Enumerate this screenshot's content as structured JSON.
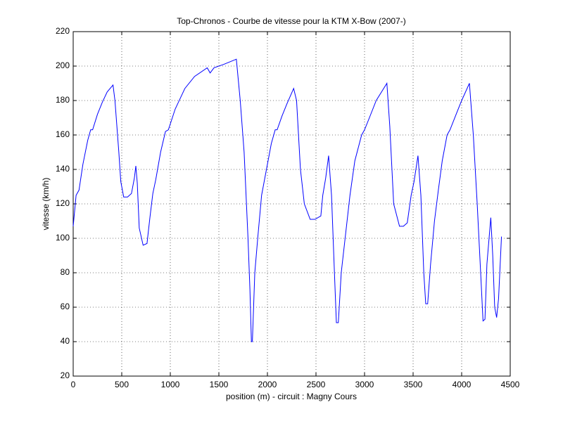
{
  "chart_data": {
    "type": "line",
    "title": "Top-Chronos - Courbe de vitesse pour la KTM X-Bow (2007-)",
    "xlabel": "position (m) - circuit : Magny Cours",
    "ylabel": "vitesse (km/h)",
    "color": "#0000ff",
    "grid": true,
    "xlim": [
      0,
      4500
    ],
    "xticks": [
      0,
      500,
      1000,
      1500,
      2000,
      2500,
      3000,
      3500,
      4000,
      4500
    ],
    "ylim": [
      20,
      220
    ],
    "yticks": [
      20,
      40,
      60,
      80,
      100,
      120,
      140,
      160,
      180,
      200,
      220
    ],
    "x": [
      0,
      30,
      60,
      100,
      150,
      180,
      200,
      250,
      300,
      350,
      410,
      430,
      470,
      490,
      520,
      560,
      600,
      630,
      645,
      660,
      680,
      720,
      760,
      790,
      820,
      850,
      900,
      950,
      980,
      1050,
      1150,
      1250,
      1380,
      1410,
      1450,
      1550,
      1680,
      1720,
      1760,
      1800,
      1820,
      1835,
      1845,
      1870,
      1900,
      1940,
      1990,
      2040,
      2080,
      2100,
      2150,
      2200,
      2270,
      2300,
      2340,
      2380,
      2440,
      2490,
      2550,
      2570,
      2600,
      2630,
      2660,
      2690,
      2710,
      2730,
      2760,
      2800,
      2850,
      2900,
      2970,
      3000,
      3050,
      3120,
      3230,
      3260,
      3300,
      3360,
      3400,
      3440,
      3480,
      3510,
      3550,
      3580,
      3610,
      3630,
      3650,
      3680,
      3720,
      3760,
      3800,
      3850,
      3880,
      3950,
      4000,
      4080,
      4120,
      4160,
      4200,
      4220,
      4240,
      4260,
      4300,
      4320,
      4340,
      4360,
      4380,
      4410
    ],
    "values": [
      107,
      125,
      128,
      143,
      157,
      163,
      163,
      172,
      179,
      185,
      189,
      180,
      150,
      133,
      124,
      124,
      126,
      135,
      142,
      132,
      106,
      96,
      97,
      112,
      126,
      134,
      150,
      162,
      163,
      175,
      187,
      194,
      199,
      196,
      199,
      201,
      204,
      180,
      150,
      100,
      70,
      40,
      40,
      80,
      100,
      125,
      140,
      155,
      163,
      163,
      171,
      178,
      187,
      180,
      140,
      120,
      111,
      111,
      113,
      125,
      135,
      148,
      125,
      80,
      51,
      51,
      80,
      100,
      125,
      145,
      160,
      163,
      170,
      180,
      190,
      165,
      120,
      107,
      107,
      109,
      125,
      133,
      148,
      125,
      80,
      62,
      62,
      85,
      110,
      128,
      145,
      160,
      163,
      173,
      180,
      190,
      160,
      120,
      75,
      52,
      53,
      85,
      112,
      90,
      60,
      54,
      65,
      101
    ]
  }
}
